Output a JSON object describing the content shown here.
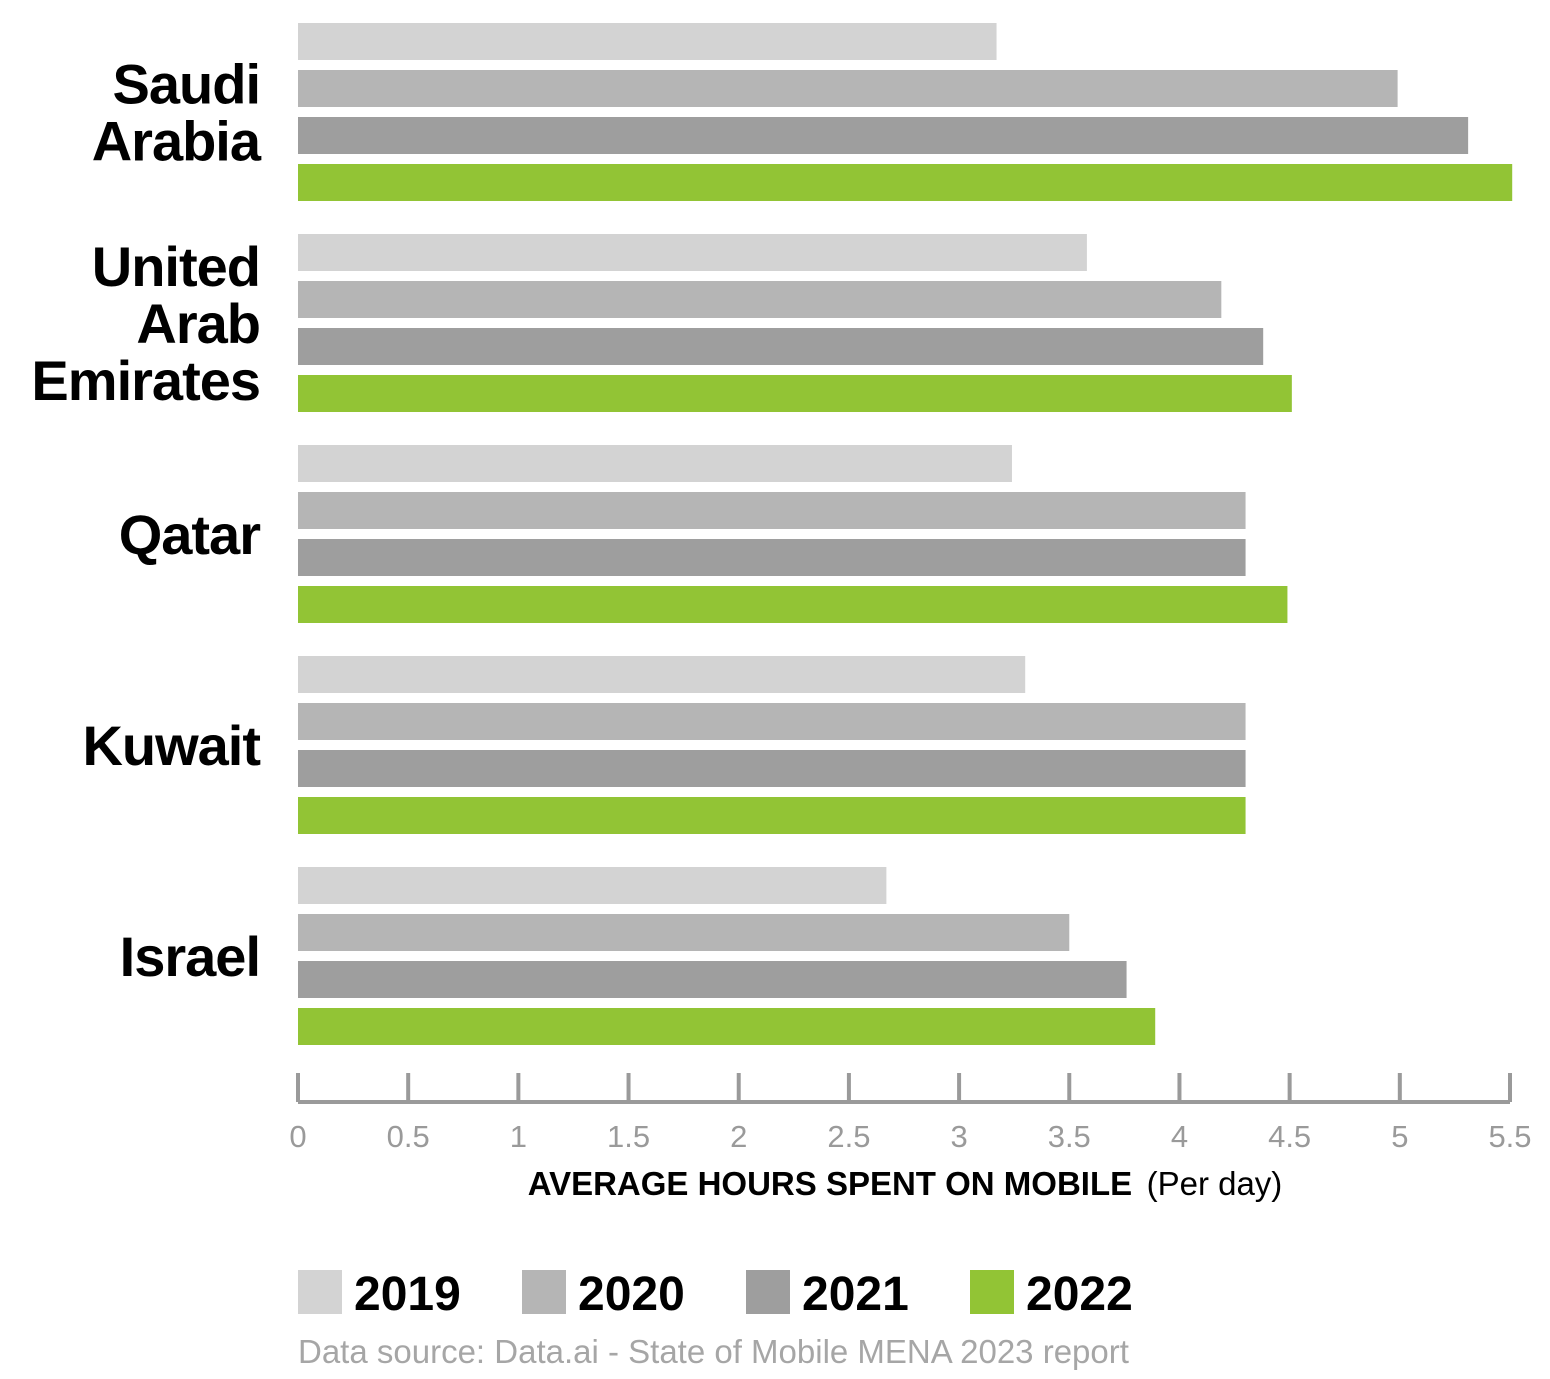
{
  "chart_data": {
    "type": "bar",
    "orientation": "horizontal",
    "categories": [
      "Saudi Arabia",
      "United Arab Emirates",
      "Qatar",
      "Kuwait",
      "Israel"
    ],
    "category_label_lines": [
      [
        "Saudi",
        "Arabia"
      ],
      [
        "United",
        "Arab",
        "Emirates"
      ],
      [
        "Qatar"
      ],
      [
        "Kuwait"
      ],
      [
        "Israel"
      ]
    ],
    "series": [
      {
        "name": "2019",
        "color": "#d3d3d3",
        "values": [
          3.17,
          3.58,
          3.24,
          3.3,
          2.67
        ]
      },
      {
        "name": "2020",
        "color": "#b5b5b5",
        "values": [
          4.99,
          4.19,
          4.3,
          4.3,
          3.5
        ]
      },
      {
        "name": "2021",
        "color": "#9e9e9e",
        "values": [
          5.31,
          4.38,
          4.3,
          4.3,
          3.76
        ]
      },
      {
        "name": "2022",
        "color": "#92c435",
        "values": [
          5.51,
          4.51,
          4.49,
          4.3,
          3.89
        ]
      }
    ],
    "xlim": [
      0,
      5.5
    ],
    "xticks": [
      0,
      0.5,
      1,
      1.5,
      2,
      2.5,
      3,
      3.5,
      4,
      4.5,
      5,
      5.5
    ],
    "xtick_labels": [
      "0",
      "0.5",
      "1",
      "1.5",
      "2",
      "2.5",
      "3",
      "3.5",
      "4",
      "4.5",
      "5",
      "5.5"
    ],
    "xlabel_bold": "AVERAGE HOURS SPENT ON MOBILE",
    "xlabel_normal": "(Per day)",
    "grid": false,
    "legend_position": "bottom",
    "axis_color": "#9a9a9a"
  },
  "source_note": "Data source: Data.ai - State of Mobile MENA 2023 report"
}
